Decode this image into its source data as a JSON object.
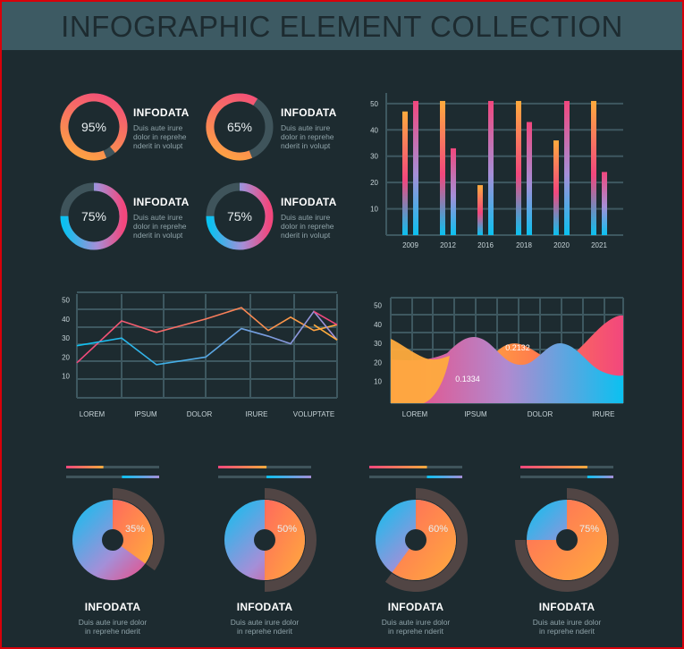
{
  "header": {
    "title": "INFOGRAPHIC ELEMENT COLLECTION"
  },
  "info_title": "INFODATA",
  "info_body": [
    "Duis aute irure",
    "dolor in reprehe",
    "nderit in volupt"
  ],
  "bottom_body": [
    "Duis aute irure dolor",
    "in reprehe nderit"
  ],
  "donuts": [
    {
      "label": "95%",
      "value": 95,
      "color": "pink-orange"
    },
    {
      "label": "65%",
      "value": 65,
      "color": "pink-orange"
    },
    {
      "label": "75%",
      "value": 75,
      "color": "blue-pink"
    },
    {
      "label": "75%",
      "value": 75,
      "color": "blue-pink"
    }
  ],
  "pies": [
    {
      "label": "35%",
      "value": 35,
      "bar1": 0.4,
      "bar2": 0.4
    },
    {
      "label": "50%",
      "value": 50,
      "bar1": 0.52,
      "bar2": 0.48
    },
    {
      "label": "60%",
      "value": 60,
      "bar1": 0.62,
      "bar2": 0.38
    },
    {
      "label": "75%",
      "value": 75,
      "bar1": 0.72,
      "bar2": 0.28
    }
  ],
  "colors": {
    "bg": "#1d2b30",
    "header": "#3d5a63",
    "grid": "#3e5860",
    "pink": "#f2477d",
    "orange": "#ffab3d",
    "blue": "#0bc1f0",
    "lavender": "#a48fd8",
    "track": "#3f545b"
  },
  "chart_data": [
    {
      "type": "bar",
      "categories": [
        "2009",
        "2012",
        "2016",
        "2018",
        "2020",
        "2021"
      ],
      "series": [
        {
          "values": [
            47,
            51,
            19,
            51,
            36,
            51
          ]
        },
        {
          "values": [
            51,
            33,
            51,
            43,
            51,
            24
          ]
        }
      ],
      "yticks": [
        10,
        20,
        30,
        40,
        50
      ],
      "ylim": [
        0,
        52
      ]
    },
    {
      "type": "line",
      "categories": [
        "LOREM",
        "IPSUM",
        "DOLOR",
        "IRURE",
        "VOLUPTATE"
      ],
      "x": [
        0,
        1,
        2,
        3,
        4,
        5,
        6,
        7,
        8
      ],
      "series": [
        {
          "color": "orange-pink",
          "values": [
            17,
            39,
            33,
            40,
            46,
            34,
            41,
            34,
            37
          ]
        },
        {
          "color": "blue-lavender",
          "values": [
            26,
            30,
            16,
            20,
            35,
            31,
            27,
            44,
            29
          ]
        },
        {
          "color": "pink",
          "values": [
            null,
            null,
            null,
            null,
            null,
            null,
            null,
            44,
            37
          ]
        },
        {
          "color": "orange",
          "values": [
            null,
            null,
            null,
            null,
            null,
            null,
            null,
            37,
            29
          ]
        }
      ],
      "yticks": [
        10,
        20,
        30,
        40,
        50
      ],
      "ylim": [
        0,
        55
      ]
    },
    {
      "type": "area",
      "categories": [
        "LOREM",
        "IPSUM",
        "DOLOR",
        "IRURE"
      ],
      "annotations": [
        "0.1334",
        "0.2132"
      ],
      "yticks": [
        10,
        20,
        30,
        40,
        50
      ],
      "ylim": [
        0,
        55
      ]
    }
  ]
}
